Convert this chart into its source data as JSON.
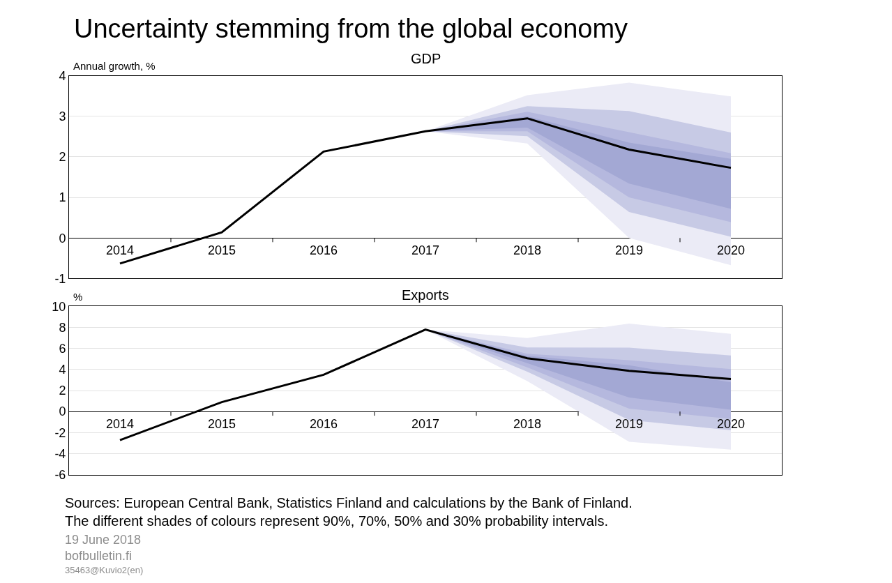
{
  "chart_data": [
    {
      "type": "line",
      "title": "Uncertainty stemming from the global economy",
      "subtitle": "GDP",
      "ylabel": "Annual growth, %",
      "categories": [
        "2014",
        "2015",
        "2016",
        "2017",
        "2018",
        "2019",
        "2020"
      ],
      "series": [
        {
          "color": "#ebebf6",
          "values": [
            null,
            null,
            null,
            null,
            null,
            null,
            null
          ],
          "upper": [
            null,
            null,
            null,
            2.63,
            3.52,
            3.83,
            3.49
          ],
          "lower": [
            null,
            null,
            null,
            2.63,
            2.33,
            0.0,
            -0.67
          ]
        },
        {
          "color": "#c7cae5",
          "values": [
            null,
            null,
            null,
            null,
            null,
            null,
            null
          ],
          "upper": [
            null,
            null,
            null,
            2.63,
            3.25,
            3.13,
            2.6
          ],
          "lower": [
            null,
            null,
            null,
            2.63,
            2.51,
            0.64,
            0.03
          ]
        },
        {
          "color": "#b5b8de",
          "values": [
            null,
            null,
            null,
            null,
            null,
            null,
            null
          ],
          "upper": [
            null,
            null,
            null,
            2.63,
            3.11,
            2.61,
            2.09
          ],
          "lower": [
            null,
            null,
            null,
            2.63,
            2.63,
            1.0,
            0.39
          ]
        },
        {
          "color": "#a3a8d4",
          "values": [
            null,
            null,
            null,
            null,
            null,
            null,
            null
          ],
          "upper": [
            null,
            null,
            null,
            2.63,
            3.0,
            2.35,
            1.95
          ],
          "lower": [
            null,
            null,
            null,
            2.63,
            2.72,
            1.34,
            0.72
          ]
        },
        {
          "color": "#000000",
          "values": [
            -0.63,
            0.14,
            2.13,
            2.63,
            2.95,
            2.18,
            1.73
          ]
        }
      ],
      "ylim": [
        -1,
        4
      ],
      "yticks": [
        -1,
        0,
        1,
        2,
        3,
        4
      ],
      "grid": "y",
      "marker": "none",
      "line_style": "solid"
    },
    {
      "type": "line",
      "title": "Exports",
      "ylabel": "%",
      "categories": [
        "2014",
        "2015",
        "2016",
        "2017",
        "2018",
        "2019",
        "2020"
      ],
      "series": [
        {
          "color": "#ebebf6",
          "values": [
            null,
            null,
            null,
            null,
            null,
            null,
            null
          ],
          "upper": [
            null,
            null,
            null,
            7.8,
            7.0,
            8.37,
            7.39
          ],
          "lower": [
            null,
            null,
            null,
            7.8,
            2.9,
            -2.87,
            -3.63
          ]
        },
        {
          "color": "#c7cae5",
          "values": [
            null,
            null,
            null,
            null,
            null,
            null,
            null
          ],
          "upper": [
            null,
            null,
            null,
            7.8,
            6.1,
            6.09,
            5.33
          ],
          "lower": [
            null,
            null,
            null,
            7.8,
            3.8,
            -0.8,
            -1.78
          ]
        },
        {
          "color": "#b5b8de",
          "values": [
            null,
            null,
            null,
            null,
            null,
            null,
            null
          ],
          "upper": [
            null,
            null,
            null,
            7.8,
            5.5,
            4.89,
            4.04
          ],
          "lower": [
            null,
            null,
            null,
            7.8,
            4.2,
            0.28,
            -0.7
          ]
        },
        {
          "color": "#a3a8d4",
          "values": [
            null,
            null,
            null,
            null,
            null,
            null,
            null
          ],
          "upper": [
            null,
            null,
            null,
            7.8,
            5.3,
            4.4,
            2.78
          ],
          "lower": [
            null,
            null,
            null,
            7.8,
            4.6,
            1.33,
            0.17
          ]
        },
        {
          "color": "#000000",
          "values": [
            -2.72,
            0.9,
            3.5,
            7.8,
            5.07,
            3.87,
            3.1
          ]
        }
      ],
      "ylim": [
        -6,
        10
      ],
      "yticks": [
        -6,
        -4,
        -2,
        0,
        2,
        4,
        6,
        8,
        10
      ],
      "grid": "y",
      "marker": "none",
      "line_style": "solid",
      "annotations": [
        "Sources: European Central Bank, Statistics Finland and calculations by the Bank of Finland. The different shades of colours represent 90%, 70%, 50% and 30% probability intervals.",
        "19 June 2018",
        "bofbulletin.fi",
        "35463@Kuvio2(en)"
      ]
    }
  ]
}
